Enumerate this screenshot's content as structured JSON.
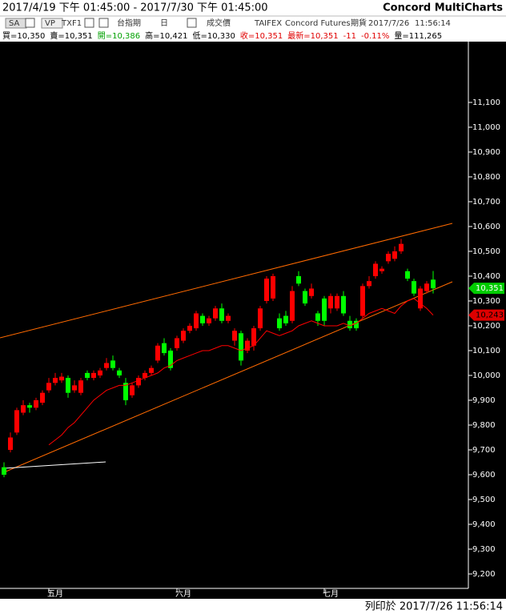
{
  "header": {
    "range": "2017/4/19 下午 01:45:00 - 2017/7/30 下午 01:45:00",
    "app": "Concord MultiCharts"
  },
  "toolbar": [
    "SA",
    "VP",
    "TXF1",
    "台指期",
    "日",
    "成交價",
    "TAIFEX",
    "Concord Futures",
    "期貨",
    "2017/7/26",
    "11:56:14"
  ],
  "quote": [
    {
      "text": "買=10,350",
      "color": "#000000"
    },
    {
      "text": "賣=10,351",
      "color": "#000000"
    },
    {
      "text": "開=10,386",
      "color": "#00a000"
    },
    {
      "text": "高=10,421",
      "color": "#000000"
    },
    {
      "text": "低=10,330",
      "color": "#000000"
    },
    {
      "text": "收=10,351",
      "color": "#e00000"
    },
    {
      "text": "最新=10,351",
      "color": "#e00000"
    },
    {
      "text": "-11",
      "color": "#e00000"
    },
    {
      "text": "-0.11%",
      "color": "#e00000"
    },
    {
      "text": "量=111,265",
      "color": "#000000"
    }
  ],
  "footer": "列印於 2017/7/26 11:56:14",
  "chart_data": {
    "type": "candlestick",
    "up_color": "#ff0000",
    "down_color": "#00ff00",
    "categories": [
      null,
      null,
      null,
      null,
      null,
      null,
      null,
      null,
      "五月",
      null,
      null,
      null,
      null,
      null,
      null,
      null,
      null,
      null,
      null,
      null,
      null,
      null,
      null,
      null,
      null,
      null,
      null,
      null,
      "六月",
      null,
      null,
      null,
      null,
      null,
      null,
      null,
      null,
      null,
      null,
      null,
      null,
      null,
      null,
      null,
      null,
      null,
      null,
      null,
      null,
      null,
      null,
      "七月",
      null,
      null,
      null,
      null,
      null,
      null,
      null,
      null,
      null,
      null,
      null,
      null,
      null,
      null,
      null,
      null
    ],
    "open": [
      9630,
      9700,
      9770,
      9850,
      9880,
      9870,
      9890,
      9940,
      9970,
      9980,
      9990,
      9940,
      9930,
      10010,
      9990,
      10000,
      10030,
      10060,
      10020,
      9970,
      9920,
      9960,
      9990,
      10010,
      10060,
      10130,
      10100,
      10110,
      10140,
      10180,
      10190,
      10240,
      10210,
      10230,
      10270,
      10220,
      10140,
      10170,
      10100,
      10120,
      10190,
      10300,
      10310,
      10230,
      10240,
      10220,
      10400,
      10340,
      10320,
      10250,
      10310,
      10270,
      10270,
      10320,
      10220,
      10220,
      10240,
      10360,
      10400,
      10420,
      10460,
      10470,
      10500,
      10420,
      10380,
      10270,
      10340,
      10386
    ],
    "high": [
      9650,
      9770,
      9870,
      9900,
      9890,
      9910,
      9940,
      9990,
      10010,
      10010,
      10000,
      9980,
      9990,
      10020,
      10020,
      10030,
      10070,
      10080,
      10030,
      9990,
      9970,
      10000,
      10020,
      10040,
      10130,
      10150,
      10110,
      10160,
      10190,
      10210,
      10260,
      10250,
      10240,
      10280,
      10290,
      10250,
      10190,
      10180,
      10150,
      10200,
      10280,
      10400,
      10410,
      10250,
      10260,
      10360,
      10420,
      10350,
      10370,
      10260,
      10320,
      10330,
      10330,
      10340,
      10240,
      10230,
      10370,
      10400,
      10460,
      10440,
      10500,
      10520,
      10550,
      10430,
      10390,
      10360,
      10380,
      10421
    ],
    "low": [
      9590,
      9690,
      9760,
      9840,
      9850,
      9860,
      9880,
      9930,
      9960,
      9970,
      9910,
      9930,
      9920,
      9980,
      9980,
      9990,
      10020,
      10020,
      9990,
      9880,
      9910,
      9950,
      9980,
      10000,
      10050,
      10080,
      10020,
      10100,
      10130,
      10170,
      10180,
      10200,
      10200,
      10220,
      10210,
      10210,
      10120,
      10040,
      10090,
      10100,
      10180,
      10290,
      10300,
      10180,
      10200,
      10210,
      10360,
      10280,
      10310,
      10200,
      10200,
      10250,
      10260,
      10240,
      10180,
      10180,
      10230,
      10350,
      10390,
      10410,
      10450,
      10460,
      10490,
      10380,
      10320,
      10260,
      10330,
      10330
    ],
    "close": [
      9600,
      9750,
      9860,
      9880,
      9870,
      9900,
      9930,
      9970,
      9990,
      9995,
      9930,
      9960,
      9980,
      9990,
      10010,
      10020,
      10050,
      10030,
      10000,
      9900,
      9960,
      9990,
      10010,
      10030,
      10120,
      10090,
      10030,
      10150,
      10180,
      10200,
      10250,
      10210,
      10230,
      10270,
      10220,
      10240,
      10180,
      10060,
      10140,
      10190,
      10270,
      10390,
      10400,
      10190,
      10210,
      10340,
      10370,
      10290,
      10350,
      10220,
      10220,
      10320,
      10320,
      10250,
      10190,
      10190,
      10360,
      10380,
      10450,
      10430,
      10490,
      10500,
      10530,
      10390,
      10330,
      10350,
      10370,
      10351
    ],
    "close_label": "10,351",
    "series": [
      {
        "color": "#ff0000",
        "label": "10,243",
        "values": [
          null,
          null,
          null,
          null,
          null,
          null,
          null,
          9720,
          9740,
          9760,
          9790,
          9810,
          9840,
          9870,
          9900,
          9920,
          9940,
          9950,
          9960,
          9960,
          9970,
          9980,
          9990,
          10000,
          10010,
          10030,
          10040,
          10060,
          10070,
          10080,
          10090,
          10100,
          10100,
          10110,
          10120,
          10120,
          10110,
          10100,
          10110,
          10120,
          10150,
          10180,
          10170,
          10160,
          10170,
          10180,
          10200,
          10210,
          10220,
          10210,
          10200,
          10200,
          10200,
          10210,
          10200,
          10210,
          10230,
          10250,
          10260,
          10270,
          10260,
          10250,
          10280,
          10300,
          10310,
          10290,
          10270,
          10243
        ]
      }
    ],
    "ylim": [
      9100,
      11345
    ],
    "yticks": [
      {
        "value": 9200,
        "label": "9,200"
      },
      {
        "value": 9300,
        "label": "9,300"
      },
      {
        "value": 9400,
        "label": "9,400"
      },
      {
        "value": 9500,
        "label": "9,500"
      },
      {
        "value": 9600,
        "label": "9,600"
      },
      {
        "value": 9700,
        "label": "9,700"
      },
      {
        "value": 9800,
        "label": "9,800"
      },
      {
        "value": 9900,
        "label": "9,900"
      },
      {
        "value": 10000,
        "label": "10,000"
      },
      {
        "value": 10100,
        "label": "10,100"
      },
      {
        "value": 10200,
        "label": "10,200"
      },
      {
        "value": 10300,
        "label": "10,300"
      },
      {
        "value": 10400,
        "label": "10,400"
      },
      {
        "value": 10500,
        "label": "10,500"
      },
      {
        "value": 10600,
        "label": "10,600"
      },
      {
        "value": 10700,
        "label": "10,700"
      },
      {
        "value": 10800,
        "label": "10,800"
      },
      {
        "value": 10900,
        "label": "10,900"
      },
      {
        "value": 11000,
        "label": "11,000"
      },
      {
        "value": 11100,
        "label": "11,100"
      }
    ]
  }
}
